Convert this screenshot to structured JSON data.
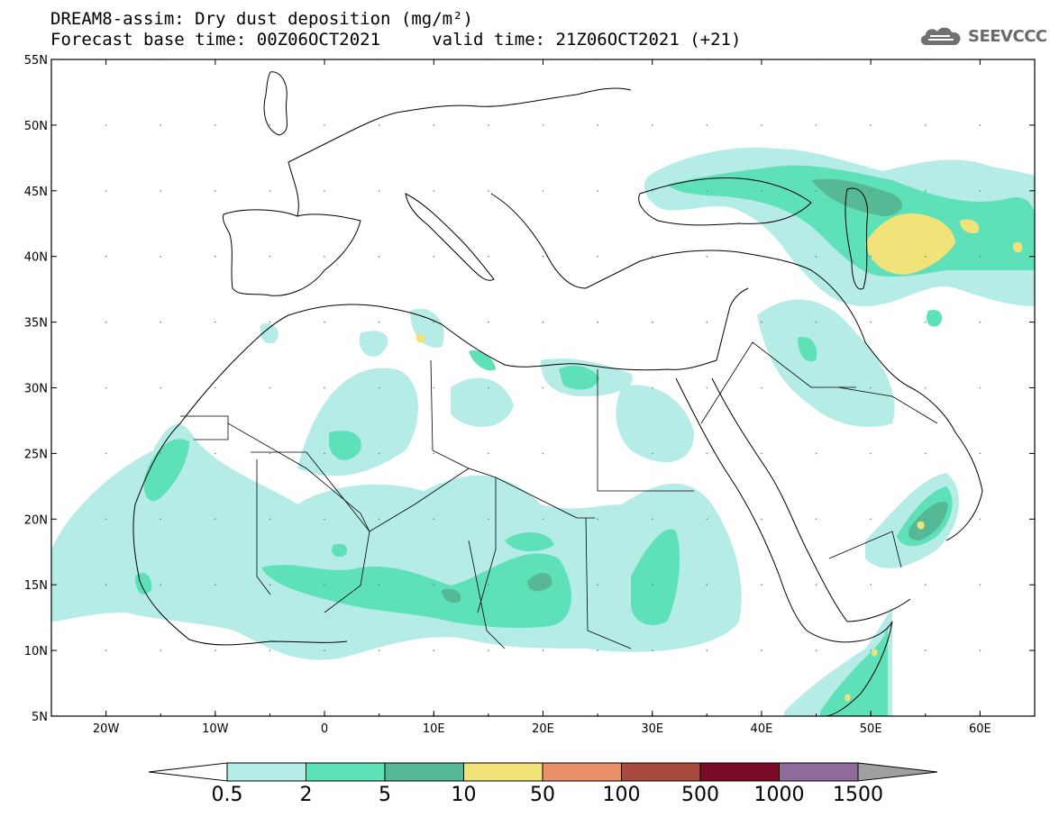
{
  "header": {
    "title_line1": "DREAM8-assim: Dry dust deposition (mg/m²)",
    "title_line2": "Forecast base time: 00Z06OCT2021     valid time: 21Z06OCT2021 (+21)",
    "logo_text": "SEEVCCC"
  },
  "map": {
    "lon_labels": [
      "20W",
      "10W",
      "0",
      "10E",
      "20E",
      "30E",
      "40E",
      "50E",
      "60E"
    ],
    "lon_values": [
      -20,
      -10,
      0,
      10,
      20,
      30,
      40,
      50,
      60
    ],
    "lat_labels": [
      "55N",
      "50N",
      "45N",
      "40N",
      "35N",
      "30N",
      "25N",
      "20N",
      "15N",
      "10N",
      "5N"
    ],
    "lat_values": [
      55,
      50,
      45,
      40,
      35,
      30,
      25,
      20,
      15,
      10,
      5
    ],
    "lon_range": [
      -25,
      65
    ],
    "lat_range": [
      5,
      55
    ],
    "grid_dots": true
  },
  "legend": {
    "labels": [
      "0.5",
      "2",
      "5",
      "10",
      "50",
      "100",
      "500",
      "1000",
      "1500"
    ],
    "colors": [
      "#b5ece6",
      "#5ee0b9",
      "#56b995",
      "#f2e27a",
      "#e98f6a",
      "#a94a3e",
      "#7a0c28",
      "#8e6b9c"
    ],
    "under_color": "#ffffff",
    "over_color": "#a0a0a0"
  }
}
